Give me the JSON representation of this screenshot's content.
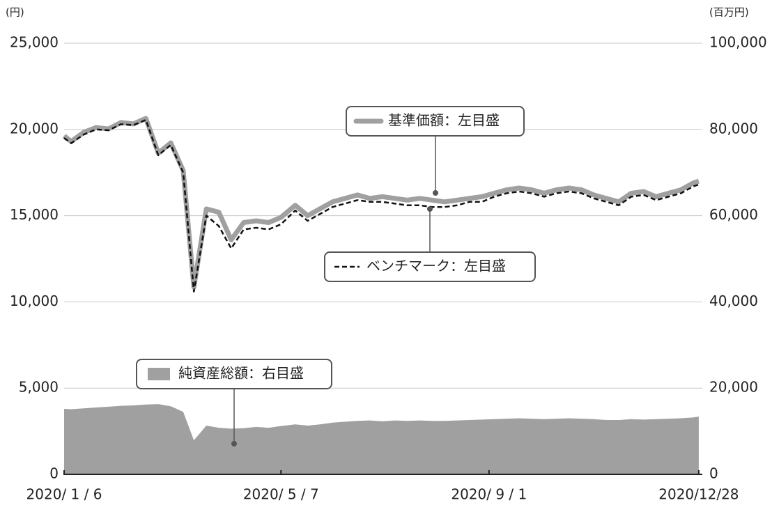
{
  "chart_data": {
    "type": "line",
    "y_unit_label": "(円)",
    "y2_unit_label": "(百万円)",
    "x": [
      "2020-01-06",
      "2020-01-10",
      "2020-01-17",
      "2020-01-24",
      "2020-01-31",
      "2020-02-07",
      "2020-02-14",
      "2020-02-21",
      "2020-02-28",
      "2020-03-06",
      "2020-03-13",
      "2020-03-19",
      "2020-03-26",
      "2020-04-02",
      "2020-04-09",
      "2020-04-16",
      "2020-04-23",
      "2020-04-30",
      "2020-05-07",
      "2020-05-15",
      "2020-05-22",
      "2020-05-29",
      "2020-06-05",
      "2020-06-12",
      "2020-06-19",
      "2020-06-26",
      "2020-07-03",
      "2020-07-10",
      "2020-07-17",
      "2020-07-24",
      "2020-07-31",
      "2020-08-07",
      "2020-08-14",
      "2020-08-21",
      "2020-08-28",
      "2020-09-04",
      "2020-09-11",
      "2020-09-18",
      "2020-09-25",
      "2020-10-02",
      "2020-10-09",
      "2020-10-16",
      "2020-10-23",
      "2020-10-30",
      "2020-11-06",
      "2020-11-13",
      "2020-11-20",
      "2020-11-27",
      "2020-12-04",
      "2020-12-11",
      "2020-12-18",
      "2020-12-25",
      "2020-12-28"
    ],
    "xlim": [
      "2020-01-06",
      "2020-12-30"
    ],
    "xticks": [
      {
        "value": "2020-01-06",
        "label": "2020/ 1 / 6"
      },
      {
        "value": "2020-05-07",
        "label": "2020/ 5 / 7"
      },
      {
        "value": "2020-09-01",
        "label": "2020/ 9 / 1"
      },
      {
        "value": "2020-12-28",
        "label": "2020/12/28"
      }
    ],
    "ylim": [
      0,
      25000
    ],
    "yticks": [
      0,
      {
        "value": 5000,
        "label": "5,000"
      },
      {
        "value": 10000,
        "label": "10,000"
      },
      {
        "value": 15000,
        "label": "15,000"
      },
      {
        "value": 20000,
        "label": "20,000"
      },
      {
        "value": 25000,
        "label": "25,000"
      }
    ],
    "y2lim": [
      0,
      100000
    ],
    "y2ticks": [
      0,
      {
        "value": 20000,
        "label": "20,000"
      },
      {
        "value": 40000,
        "label": "40,000"
      },
      {
        "value": 60000,
        "label": "60,000"
      },
      {
        "value": 80000,
        "label": "80,000"
      },
      {
        "value": 100000,
        "label": "100,000"
      }
    ],
    "grid": true,
    "series": [
      {
        "name": "純資産総額：右目盛",
        "color": "#a0a0a0",
        "kind": "area",
        "axis": "y2",
        "values": [
          15190,
          15100,
          15300,
          15500,
          15700,
          15900,
          16000,
          16200,
          16300,
          15800,
          14500,
          7900,
          11300,
          10800,
          10600,
          10700,
          11000,
          10800,
          11200,
          11600,
          11300,
          11600,
          12000,
          12200,
          12400,
          12500,
          12300,
          12500,
          12400,
          12500,
          12400,
          12400,
          12500,
          12600,
          12700,
          12800,
          12900,
          13000,
          12900,
          12800,
          12900,
          13000,
          12900,
          12800,
          12600,
          12600,
          12800,
          12700,
          12800,
          12900,
          13000,
          13200,
          13400
        ]
      },
      {
        "name": "基準価額：左目盛",
        "color": "#a0a0a0",
        "kind": "line",
        "values": [
          19630,
          19300,
          19830,
          20110,
          20030,
          20400,
          20320,
          20640,
          18620,
          19220,
          17610,
          10850,
          15390,
          15200,
          13600,
          14600,
          14700,
          14600,
          14900,
          15600,
          15000,
          15400,
          15800,
          16000,
          16200,
          16000,
          16100,
          16000,
          15900,
          16000,
          15900,
          15800,
          15900,
          16000,
          16100,
          16300,
          16500,
          16600,
          16500,
          16300,
          16500,
          16600,
          16500,
          16200,
          16000,
          15800,
          16300,
          16400,
          16100,
          16300,
          16500,
          16900,
          17000
        ]
      },
      {
        "name": "ベンチマーク：左目盛",
        "color": "#111111",
        "kind": "dashed",
        "values": [
          19500,
          19200,
          19700,
          20000,
          19950,
          20300,
          20250,
          20550,
          18500,
          19100,
          17500,
          10600,
          15000,
          14400,
          13100,
          14200,
          14300,
          14200,
          14500,
          15300,
          14700,
          15100,
          15500,
          15700,
          15900,
          15800,
          15800,
          15700,
          15600,
          15600,
          15500,
          15500,
          15600,
          15800,
          15800,
          16100,
          16300,
          16400,
          16300,
          16100,
          16300,
          16400,
          16300,
          16000,
          15800,
          15600,
          16100,
          16200,
          15900,
          16100,
          16300,
          16700,
          16800
        ]
      }
    ]
  }
}
